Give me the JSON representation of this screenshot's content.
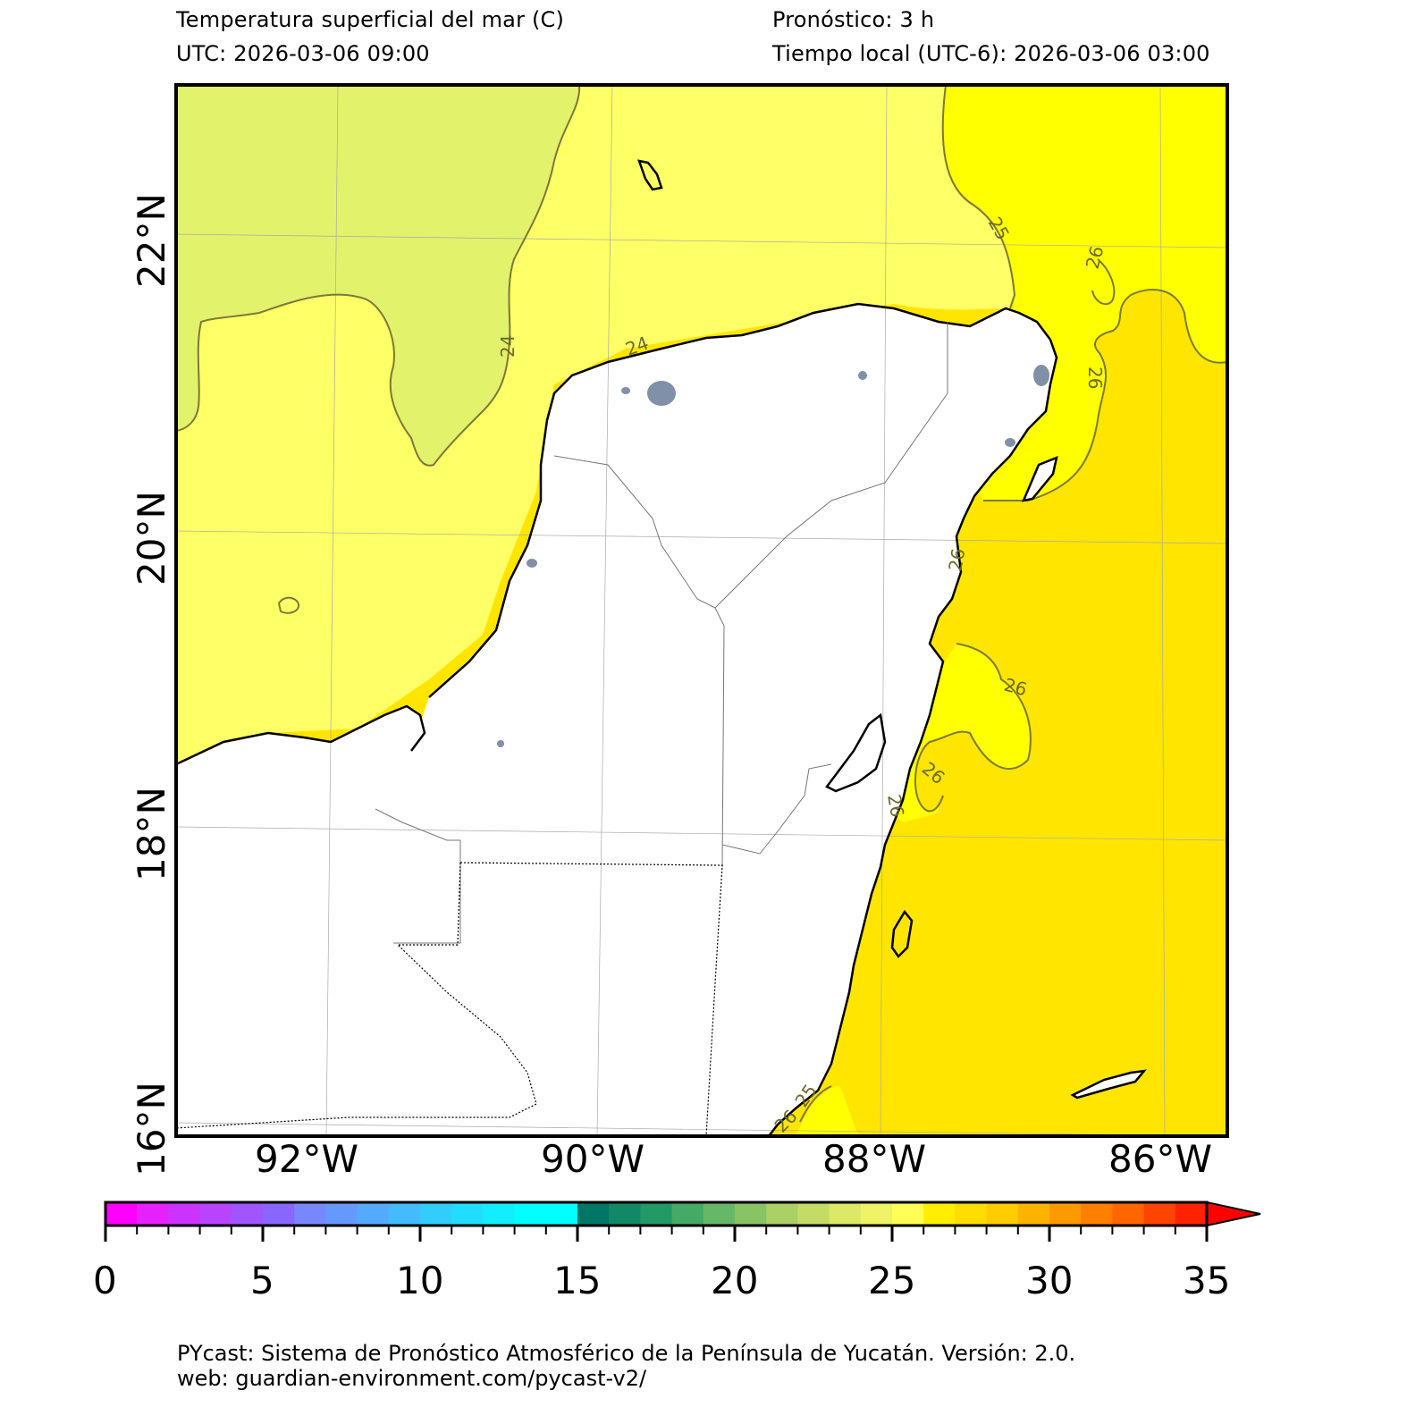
{
  "header": {
    "title": "Temperatura superficial del mar (C)",
    "utc": "UTC:  2026-03-06 09:00",
    "forecast": "Pronóstico: 3 h",
    "local_time": "Tiempo local (UTC-6): 2026-03-06 03:00"
  },
  "map": {
    "variable": "Temperatura superficial del mar",
    "lat_labels": [
      "22°N",
      "20°N",
      "18°N",
      "16°N"
    ],
    "lon_labels": [
      "92°W",
      "90°W",
      "88°W",
      "86°W"
    ],
    "contour_labels": [
      "24",
      "24",
      "25",
      "26",
      "26",
      "26",
      "26",
      "26",
      "26",
      "25",
      "26"
    ],
    "colors": {
      "sst_23_24": "#e2f26b",
      "sst_24_25": "#ffff66",
      "sst_25_26": "#ffff00",
      "sst_26_27": "#ffe500",
      "land": "#ffffff",
      "contour": "#7a7a3a",
      "coast": "#000000",
      "cities": "#8090a8"
    }
  },
  "colorbar": {
    "min": 0,
    "max": 35,
    "step": 1,
    "extend": "max",
    "tick_labels": [
      "0",
      "5",
      "10",
      "15",
      "20",
      "25",
      "30",
      "35"
    ],
    "colors": [
      "#ff00ff",
      "#e522ff",
      "#cc33ff",
      "#b844ff",
      "#a055ff",
      "#8866ff",
      "#7788ff",
      "#6699ff",
      "#55aaff",
      "#44bbff",
      "#33ccff",
      "#22ddff",
      "#11eeff",
      "#00ffff",
      "#00ffff",
      "#007766",
      "#118866",
      "#229966",
      "#44aa66",
      "#66b866",
      "#88c466",
      "#aad066",
      "#c4dc66",
      "#dde866",
      "#eef466",
      "#ffff55",
      "#ffee00",
      "#ffdd00",
      "#ffcc00",
      "#ffb300",
      "#ff9900",
      "#ff8000",
      "#ff6600",
      "#ff4400",
      "#ff2200",
      "#ff0000"
    ]
  },
  "footer": {
    "line1": "PYcast: Sistema de Pronóstico Atmosférico de la Península de Yucatán. Versión: 2.0.",
    "line2": "web: guardian-environment.com/pycast-v2/"
  }
}
